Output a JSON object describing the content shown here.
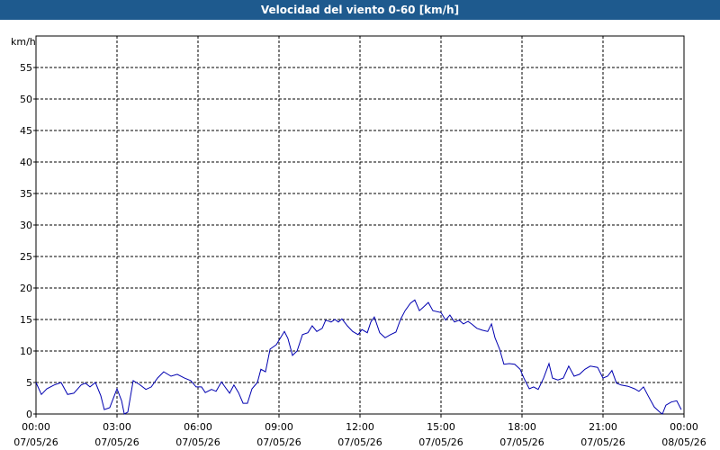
{
  "chart_data": {
    "type": "line",
    "title": "Velocidad del viento 0-60 [km/h]",
    "y_label": "km/h",
    "x": [
      0.0,
      0.2,
      0.4,
      0.67,
      0.93,
      1.17,
      1.4,
      1.67,
      1.83,
      2.0,
      2.2,
      2.4,
      2.53,
      2.73,
      3.0,
      3.17,
      3.27,
      3.4,
      3.6,
      3.83,
      4.07,
      4.27,
      4.5,
      4.73,
      5.0,
      5.23,
      5.5,
      5.73,
      5.93,
      6.13,
      6.27,
      6.5,
      6.67,
      6.87,
      7.0,
      7.17,
      7.33,
      7.5,
      7.67,
      7.83,
      8.0,
      8.2,
      8.33,
      8.5,
      8.67,
      8.9,
      9.2,
      9.33,
      9.5,
      9.67,
      9.87,
      10.07,
      10.23,
      10.4,
      10.6,
      10.73,
      10.93,
      11.07,
      11.2,
      11.33,
      11.53,
      11.73,
      11.93,
      12.07,
      12.27,
      12.4,
      12.53,
      12.73,
      12.93,
      13.13,
      13.33,
      13.5,
      13.67,
      13.87,
      14.03,
      14.2,
      14.33,
      14.53,
      14.7,
      15.0,
      15.17,
      15.33,
      15.5,
      15.67,
      15.83,
      16.0,
      16.13,
      16.33,
      16.53,
      16.73,
      16.87,
      17.0,
      17.17,
      17.33,
      17.53,
      17.73,
      17.93,
      18.07,
      18.27,
      18.43,
      18.6,
      18.8,
      19.0,
      19.13,
      19.33,
      19.53,
      19.73,
      19.93,
      20.13,
      20.33,
      20.53,
      20.8,
      21.0,
      21.17,
      21.33,
      21.5,
      21.67,
      21.93,
      22.17,
      22.33,
      22.5,
      22.67,
      22.9,
      23.1,
      23.2,
      23.33,
      23.53,
      23.73,
      23.9
    ],
    "series": [
      {
        "name": "Velocidad del viento",
        "color": "#0000b0",
        "values": [
          5.0,
          3.1,
          4.0,
          4.6,
          5.0,
          3.1,
          3.3,
          4.6,
          4.9,
          4.3,
          5.0,
          2.9,
          0.7,
          1.0,
          4.0,
          2.1,
          0.0,
          0.3,
          5.3,
          4.7,
          3.9,
          4.3,
          5.7,
          6.7,
          6.0,
          6.3,
          5.7,
          5.3,
          4.3,
          4.3,
          3.4,
          3.9,
          3.6,
          5.1,
          4.3,
          3.3,
          4.6,
          3.4,
          1.7,
          1.7,
          4.0,
          5.0,
          7.1,
          6.7,
          10.3,
          11.0,
          13.1,
          12.0,
          9.3,
          10.0,
          12.6,
          12.9,
          14.0,
          13.1,
          13.6,
          14.9,
          14.6,
          15.0,
          14.6,
          15.1,
          14.0,
          13.1,
          12.6,
          13.4,
          12.9,
          14.6,
          15.4,
          12.9,
          12.1,
          12.6,
          13.0,
          15.0,
          16.4,
          17.6,
          18.1,
          16.4,
          16.9,
          17.7,
          16.4,
          16.1,
          14.9,
          15.7,
          14.6,
          14.9,
          14.3,
          14.7,
          14.3,
          13.6,
          13.3,
          13.1,
          14.3,
          12.1,
          10.3,
          7.9,
          8.0,
          7.9,
          7.1,
          5.7,
          4.0,
          4.3,
          3.9,
          5.7,
          8.0,
          5.7,
          5.4,
          5.7,
          7.6,
          6.0,
          6.3,
          7.1,
          7.6,
          7.4,
          5.7,
          6.0,
          6.9,
          4.9,
          4.6,
          4.4,
          4.0,
          3.6,
          4.3,
          2.9,
          1.1,
          0.3,
          0.0,
          1.4,
          1.9,
          2.1,
          0.7
        ]
      }
    ],
    "xlim": [
      0,
      24
    ],
    "xticks": [
      {
        "value": 0,
        "label": "00:00\n07/05/26"
      },
      {
        "value": 3,
        "label": "03:00\n07/05/26"
      },
      {
        "value": 6,
        "label": "06:00\n07/05/26"
      },
      {
        "value": 9,
        "label": "09:00\n07/05/26"
      },
      {
        "value": 12,
        "label": "12:00\n07/05/26"
      },
      {
        "value": 15,
        "label": "15:00\n07/05/26"
      },
      {
        "value": 18,
        "label": "18:00\n07/05/26"
      },
      {
        "value": 21,
        "label": "21:00\n07/05/26"
      },
      {
        "value": 24,
        "label": "00:00\n08/05/26"
      }
    ],
    "ylim": [
      0,
      60
    ],
    "yticks": [
      0,
      5,
      10,
      15,
      20,
      25,
      30,
      35,
      40,
      45,
      50,
      55
    ],
    "grid": true
  }
}
